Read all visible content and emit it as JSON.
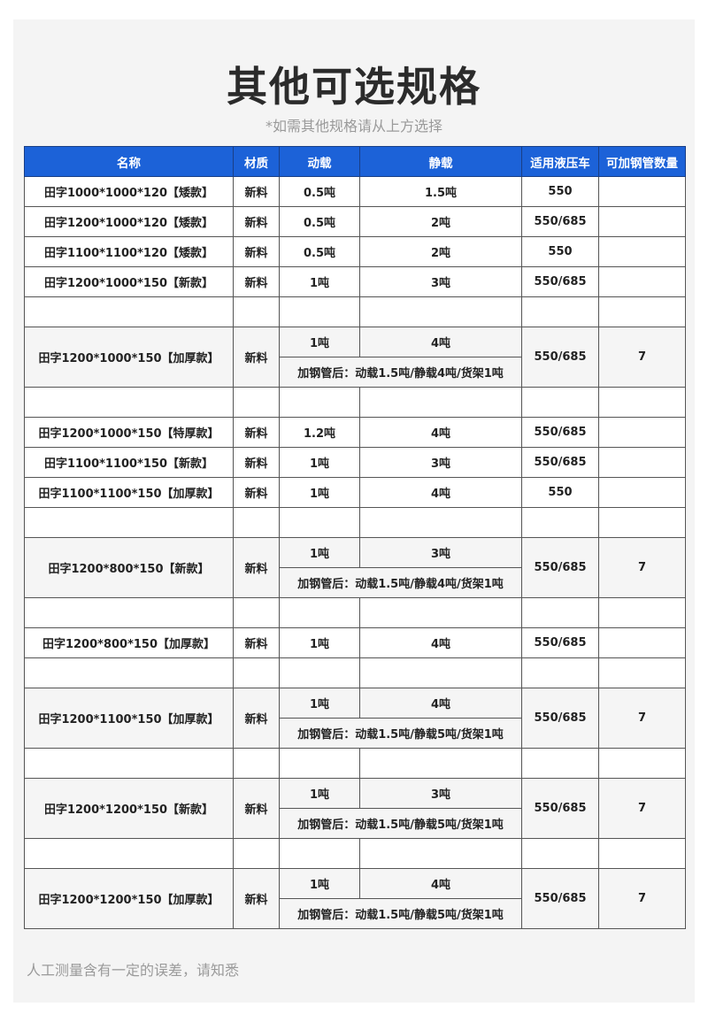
{
  "title": "其他可选规格",
  "subtitle": "*如需其他规格请从上方选择",
  "headers": [
    "名称",
    "材质",
    "动载",
    "静载",
    "适用液压车",
    "可加钢管数量"
  ],
  "rows": [
    {
      "type": "single",
      "name": "田字1000*1000*120【矮款】",
      "material": "新料",
      "dynamic": "0.5吨",
      "static": "1.5吨",
      "truck": "550",
      "pipes": ""
    },
    {
      "type": "single",
      "name": "田字1200*1000*120【矮款】",
      "material": "新料",
      "dynamic": "0.5吨",
      "static": "2吨",
      "truck": "550/685",
      "pipes": ""
    },
    {
      "type": "single",
      "name": "田字1100*1100*120【矮款】",
      "material": "新料",
      "dynamic": "0.5吨",
      "static": "2吨",
      "truck": "550",
      "pipes": ""
    },
    {
      "type": "single",
      "name": "田字1200*1000*150【新款】",
      "material": "新料",
      "dynamic": "1吨",
      "static": "3吨",
      "truck": "550/685",
      "pipes": ""
    },
    {
      "type": "blank"
    },
    {
      "type": "double",
      "name": "田字1200*1000*150【加厚款】",
      "material": "新料",
      "dynamic": "1吨",
      "static": "4吨",
      "note": "加钢管后：动载1.5吨/静载4吨/货架1吨",
      "truck": "550/685",
      "pipes": "7"
    },
    {
      "type": "blank"
    },
    {
      "type": "single",
      "name": "田字1200*1000*150【特厚款】",
      "material": "新料",
      "dynamic": "1.2吨",
      "static": "4吨",
      "truck": "550/685",
      "pipes": ""
    },
    {
      "type": "single",
      "name": "田字1100*1100*150【新款】",
      "material": "新料",
      "dynamic": "1吨",
      "static": "3吨",
      "truck": "550/685",
      "pipes": ""
    },
    {
      "type": "single",
      "name": "田字1100*1100*150【加厚款】",
      "material": "新料",
      "dynamic": "1吨",
      "static": "4吨",
      "truck": "550",
      "pipes": ""
    },
    {
      "type": "blank"
    },
    {
      "type": "double",
      "name": "田字1200*800*150【新款】",
      "material": "新料",
      "dynamic": "1吨",
      "static": "3吨",
      "note": "加钢管后：动载1.5吨/静载4吨/货架1吨",
      "truck": "550/685",
      "pipes": "7"
    },
    {
      "type": "blank"
    },
    {
      "type": "single",
      "name": "田字1200*800*150【加厚款】",
      "material": "新料",
      "dynamic": "1吨",
      "static": "4吨",
      "truck": "550/685",
      "pipes": ""
    },
    {
      "type": "blank"
    },
    {
      "type": "double",
      "name": "田字1200*1100*150【加厚款】",
      "material": "新料",
      "dynamic": "1吨",
      "static": "4吨",
      "note": "加钢管后：动载1.5吨/静载5吨/货架1吨",
      "truck": "550/685",
      "pipes": "7"
    },
    {
      "type": "blank"
    },
    {
      "type": "double",
      "name": "田字1200*1200*150【新款】",
      "material": "新料",
      "dynamic": "1吨",
      "static": "3吨",
      "note": "加钢管后：动载1.5吨/静载5吨/货架1吨",
      "truck": "550/685",
      "pipes": "7"
    },
    {
      "type": "blank"
    },
    {
      "type": "double",
      "name": "田字1200*1200*150【加厚款】",
      "material": "新料",
      "dynamic": "1吨",
      "static": "4吨",
      "note": "加钢管后：动载1.5吨/静载5吨/货架1吨",
      "truck": "550/685",
      "pipes": "7"
    }
  ],
  "footnote": "人工测量含有一定的误差，请知悉",
  "colors": {
    "header": "#1c62d8",
    "shaded_row": "#f5f5f5",
    "panel": "#f4f4f4"
  }
}
